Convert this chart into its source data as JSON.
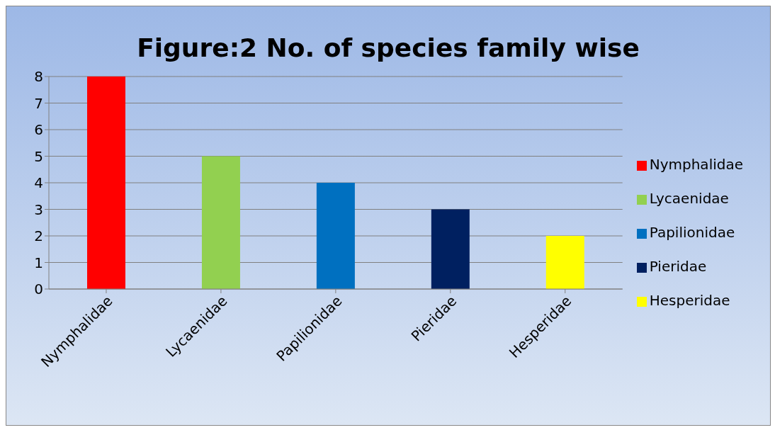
{
  "chart_data": {
    "type": "bar",
    "title": "Figure:2 No. of species family wise",
    "categories": [
      "Nymphalidae",
      "Lycaenidae",
      "Papilionidae",
      "Pieridae",
      "Hesperidae"
    ],
    "series": [
      {
        "name": "Nymphalidae",
        "color": "#ff0000",
        "values": [
          8,
          null,
          null,
          null,
          null
        ]
      },
      {
        "name": "Lycaenidae",
        "color": "#92d050",
        "values": [
          null,
          5,
          null,
          null,
          null
        ]
      },
      {
        "name": "Papilionidae",
        "color": "#0070c0",
        "values": [
          null,
          null,
          4,
          null,
          null
        ]
      },
      {
        "name": "Pieridae",
        "color": "#002060",
        "values": [
          null,
          null,
          null,
          3,
          null
        ]
      },
      {
        "name": "Hesperidae",
        "color": "#ffff00",
        "values": [
          null,
          null,
          null,
          null,
          2
        ]
      }
    ],
    "ylim": [
      0,
      8
    ],
    "yticks": [
      0,
      1,
      2,
      3,
      4,
      5,
      6,
      7,
      8
    ],
    "grid": "y",
    "legend": "right"
  }
}
